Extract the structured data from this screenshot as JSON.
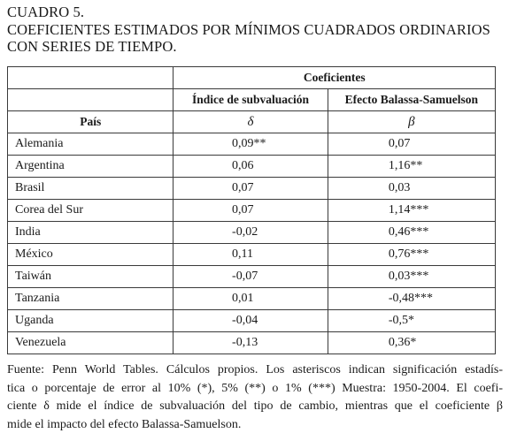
{
  "title": {
    "line1": "CUADRO 5.",
    "line2": "COEFICIENTES ESTIMADOS POR MÍNIMOS CUADRADOS ORDINARIOS",
    "line3": "CON SERIES DE TIEMPO."
  },
  "table": {
    "group_header": "Coeficientes",
    "col1_header": "País",
    "col2_header": "Índice de subvaluación",
    "col3_header": "Efecto Balassa-Samuelson",
    "col2_symbol": "δ",
    "col3_symbol": "β",
    "rows": [
      {
        "country": "Alemania",
        "delta": "0,09**",
        "beta": "0,07"
      },
      {
        "country": "Argentina",
        "delta": "0,06",
        "beta": "1,16**"
      },
      {
        "country": "Brasil",
        "delta": "0,07",
        "beta": "0,03"
      },
      {
        "country": "Corea del Sur",
        "delta": "0,07",
        "beta": "1,14***"
      },
      {
        "country": "India",
        "delta": "-0,02",
        "beta": "0,46***"
      },
      {
        "country": "México",
        "delta": "0,11",
        "beta": "0,76***"
      },
      {
        "country": "Taiwán",
        "delta": "-0,07",
        "beta": "0,03***"
      },
      {
        "country": "Tanzania",
        "delta": "0,01",
        "beta": "-0,48***"
      },
      {
        "country": "Uganda",
        "delta": "-0,04",
        "beta": "-0,5*"
      },
      {
        "country": "Venezuela",
        "delta": "-0,13",
        "beta": "0,36*"
      }
    ]
  },
  "note": {
    "line1": "Fuente: Penn World Tables. Cálculos propios. Los asteriscos indican significación estadís-",
    "line2": "tica o porcentaje de error al 10% (*), 5% (**) o 1% (***) Muestra: 1950-2004. El coefi-",
    "line3": "ciente δ mide el índice de subvaluación del tipo de cambio, mientras que el coeficiente β",
    "line4": "mide el impacto del efecto Balassa-Samuelson."
  }
}
